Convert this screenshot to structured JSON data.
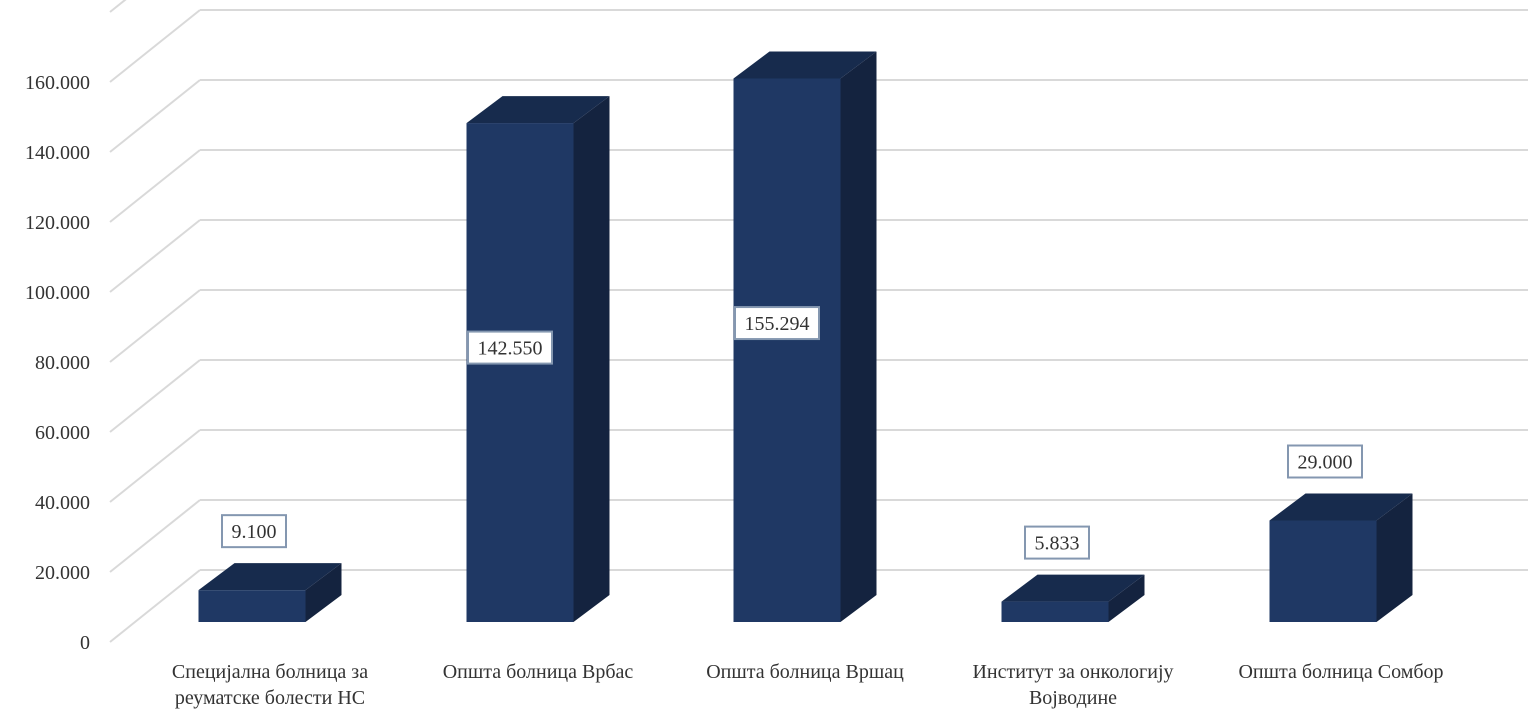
{
  "chart_data": {
    "type": "bar",
    "style": "3d-column",
    "categories": [
      [
        "Специјална болница за",
        "реуматске болести НС"
      ],
      [
        "Општа болница Врбас"
      ],
      [
        "Општа болница Вршац"
      ],
      [
        "Институт за онкологију",
        "Војводине"
      ],
      [
        "Општа болница Сомбор"
      ]
    ],
    "values": [
      9100,
      142550,
      155294,
      5833,
      29000
    ],
    "data_labels": [
      "9.100",
      "142.550",
      "155.294",
      "5.833",
      "29.000"
    ],
    "y_ticks": [
      {
        "value": 0,
        "label": "0"
      },
      {
        "value": 20000,
        "label": "20.000"
      },
      {
        "value": 40000,
        "label": "40.000"
      },
      {
        "value": 60000,
        "label": "60.000"
      },
      {
        "value": 80000,
        "label": "80.000"
      },
      {
        "value": 100000,
        "label": "100.000"
      },
      {
        "value": 120000,
        "label": "120.000"
      },
      {
        "value": 140000,
        "label": "140.000"
      },
      {
        "value": 160000,
        "label": "160.000"
      }
    ],
    "ylim": [
      0,
      180000
    ],
    "grid": true,
    "legend": "none",
    "title": "",
    "xlabel": "",
    "ylabel": "",
    "colors": {
      "bar_front": "#1f3864",
      "bar_top": "#172b4d",
      "bar_side": "#14233f",
      "grid": "#d9d9d9",
      "label_border": "#8497b0"
    }
  }
}
